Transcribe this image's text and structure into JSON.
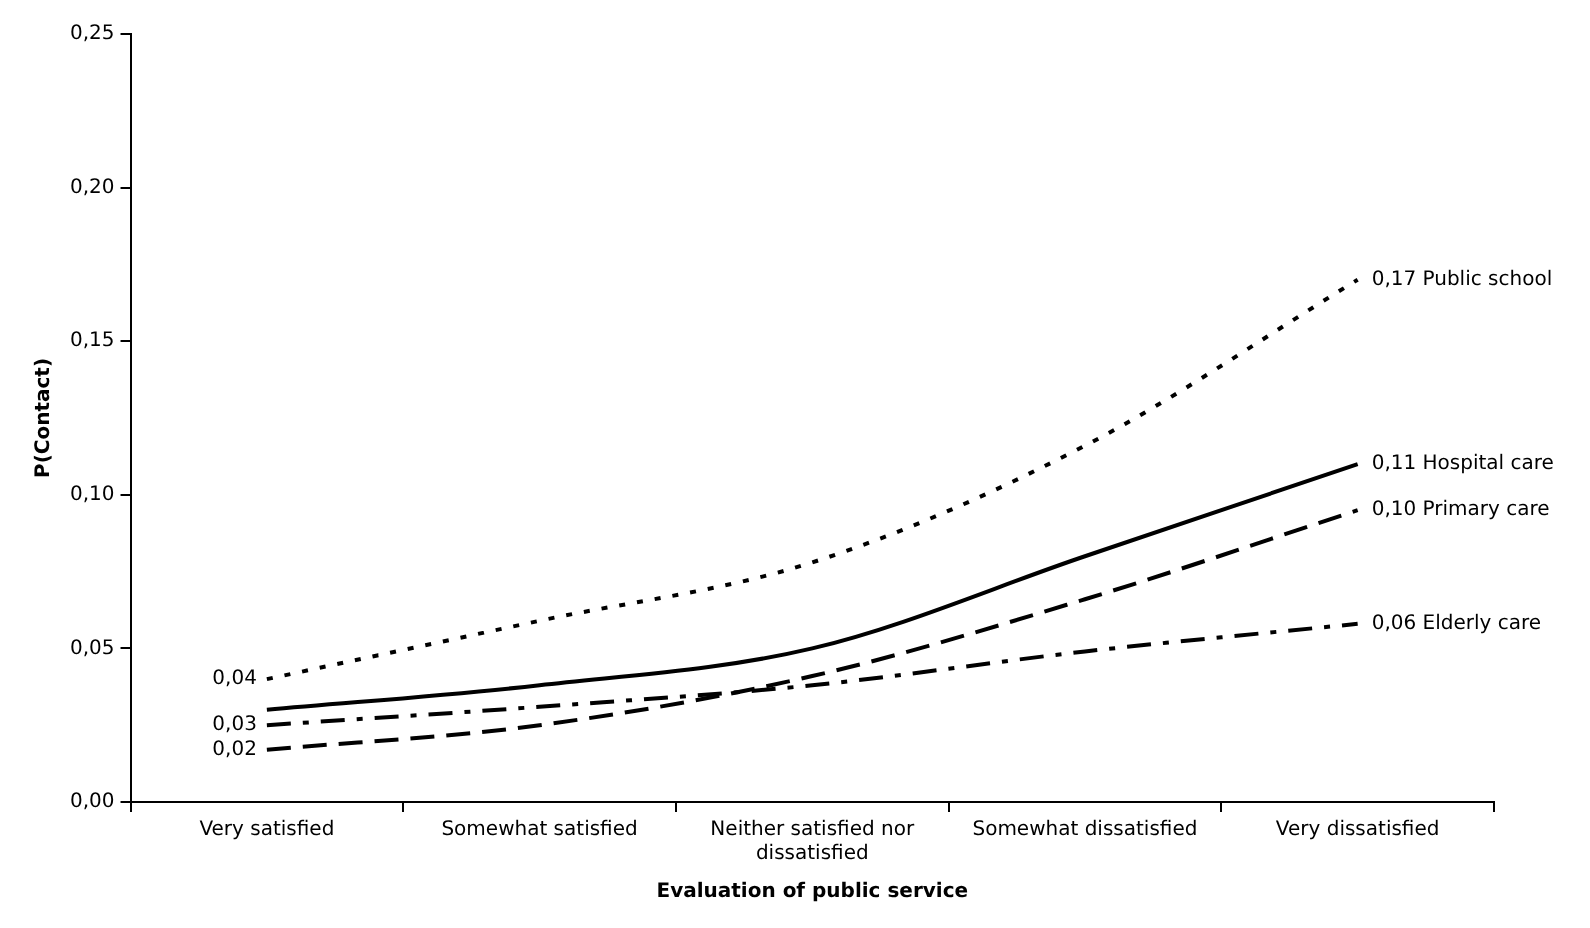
{
  "chart_data": {
    "type": "line",
    "xlabel": "Evaluation of public service",
    "ylabel": "P(Contact)",
    "categories": [
      "Very satisfied",
      "Somewhat satisfied",
      "Neither satisfied nor dissatisfied",
      "Somewhat dissatisfied",
      "Very dissatisfied"
    ],
    "ylim": [
      0,
      0.25
    ],
    "yticks": [
      {
        "value": 0,
        "label": "0,00"
      },
      {
        "value": 0.05,
        "label": "0,05"
      },
      {
        "value": 0.1,
        "label": "0,10"
      },
      {
        "value": 0.15,
        "label": "0,15"
      },
      {
        "value": 0.2,
        "label": "0,20"
      },
      {
        "value": 0.25,
        "label": "0,25"
      }
    ],
    "grid": false,
    "legend": false,
    "marker": "none",
    "series": [
      {
        "name": "Public school",
        "color": "#000000",
        "line_style": "dotted",
        "values": [
          0.04,
          0.059,
          0.078,
          0.116,
          0.17
        ],
        "value_labels": [
          "0,04",
          null,
          null,
          null,
          "0,17"
        ]
      },
      {
        "name": "Hospital care",
        "color": "#000000",
        "line_style": "solid",
        "values": [
          0.03,
          0.038,
          0.05,
          0.08,
          0.11
        ],
        "value_labels": [
          null,
          null,
          null,
          null,
          "0,11"
        ]
      },
      {
        "name": "Primary care",
        "color": "#000000",
        "line_style": "dashed",
        "values": [
          0.017,
          0.025,
          0.041,
          0.066,
          0.095
        ],
        "value_labels": [
          "0,02",
          null,
          null,
          null,
          "0,10"
        ]
      },
      {
        "name": "Elderly care",
        "color": "#000000",
        "line_style": "dashdot",
        "values": [
          0.025,
          0.031,
          0.038,
          0.049,
          0.058
        ],
        "value_labels": [
          "0,03",
          null,
          null,
          null,
          "0,06"
        ]
      }
    ]
  }
}
